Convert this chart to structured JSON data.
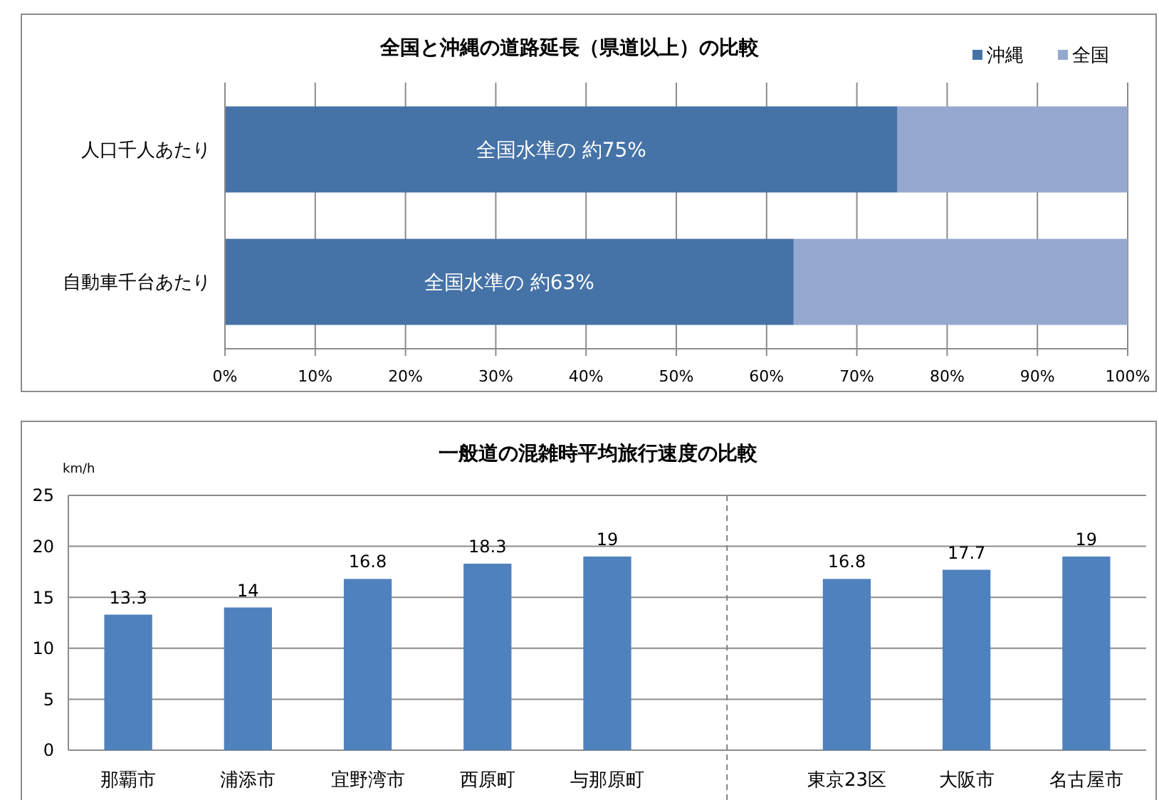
{
  "chart_data": [
    {
      "type": "bar",
      "title": "全国と沖縄の道路延長（県道以上）の比較",
      "orientation": "horizontal",
      "stacked": true,
      "categories": [
        "人口千人あたり",
        "自動車千台あたり"
      ],
      "series": [
        {
          "name": "沖縄",
          "color": "#4572a7",
          "values": [
            74.5,
            63
          ]
        },
        {
          "name": "全国",
          "color": "#95a8d0",
          "values": [
            25.5,
            37
          ]
        }
      ],
      "xlim": [
        0,
        100
      ],
      "xticks": [
        {
          "value": 0,
          "label": "0%"
        },
        {
          "value": 10,
          "label": "10%"
        },
        {
          "value": 20,
          "label": "20%"
        },
        {
          "value": 30,
          "label": "30%"
        },
        {
          "value": 40,
          "label": "40%"
        },
        {
          "value": 50,
          "label": "50%"
        },
        {
          "value": 60,
          "label": "60%"
        },
        {
          "value": 70,
          "label": "70%"
        },
        {
          "value": 80,
          "label": "80%"
        },
        {
          "value": 90,
          "label": "90%"
        },
        {
          "value": 100,
          "label": "100%"
        }
      ],
      "grid": "x",
      "legend": "top right",
      "annotations": [
        "全国水準の 約75%",
        "全国水準の 約63%"
      ]
    },
    {
      "type": "bar",
      "title": "一般道の混雑時平均旅行速度の比較",
      "ylabel": "km/h",
      "categories": [
        "那覇市",
        "浦添市",
        "宜野湾市",
        "西原町",
        "与那原町",
        null,
        "東京23区",
        "大阪市",
        "名古屋市"
      ],
      "values": [
        13.3,
        14,
        16.8,
        18.3,
        19,
        null,
        16.8,
        17.7,
        19
      ],
      "color": "#4f81bd",
      "data_labels": true,
      "ylim": [
        0,
        25
      ],
      "yticks": [
        0,
        5,
        10,
        15,
        20,
        25
      ],
      "grid": "y"
    }
  ]
}
